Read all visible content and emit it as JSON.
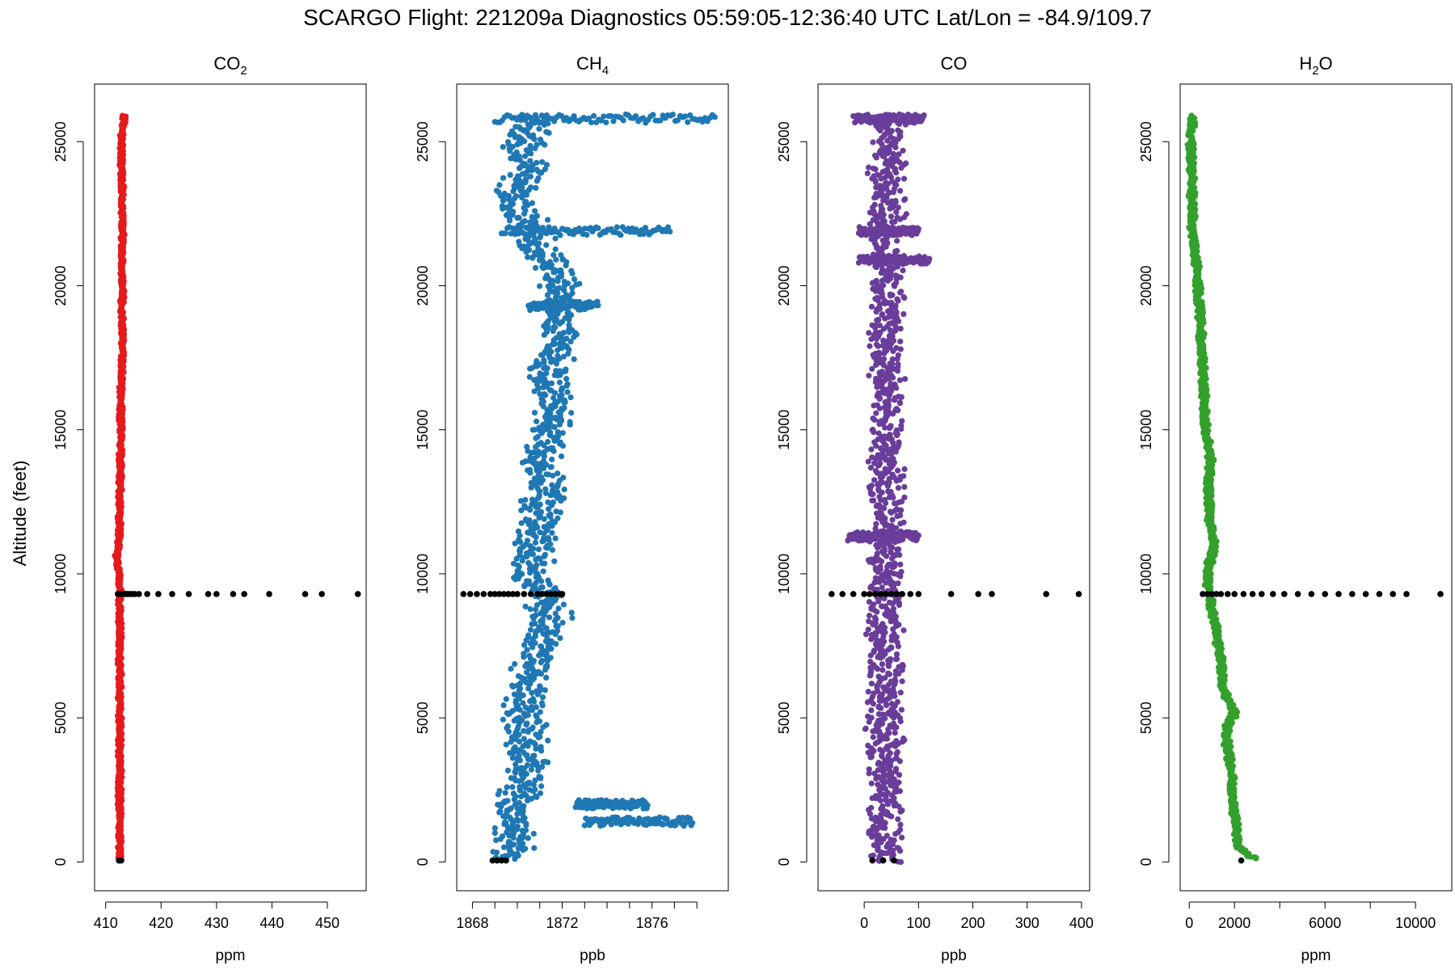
{
  "title": "SCARGO Flight: 221209a  Diagnostics  05:59:05-12:36:40 UTC  Lat/Lon = -84.9/109.7",
  "ylabel": "Altitude (feet)",
  "chart_data": [
    {
      "type": "scatter",
      "title_main": "CO",
      "title_sub": "2",
      "xlabel": "ppm",
      "color": "#e41a1c",
      "xlim": [
        408,
        457
      ],
      "ylim": [
        -1000,
        27000
      ],
      "xticks": [
        410,
        420,
        430,
        440,
        450
      ],
      "yticks": [
        0,
        5000,
        10000,
        15000,
        20000,
        25000
      ],
      "profile": {
        "altitude": [
          50,
          1000,
          2000,
          3000,
          4000,
          5000,
          6000,
          7000,
          8000,
          9000,
          9300,
          10000,
          10500,
          11000,
          12000,
          13000,
          14000,
          15000,
          16000,
          17000,
          18000,
          19000,
          20000,
          21000,
          22000,
          23000,
          24000,
          25000,
          25500,
          25900
        ],
        "value": [
          412.5,
          412.6,
          412.5,
          412.6,
          412.5,
          412.6,
          412.6,
          412.5,
          412.6,
          412.5,
          412.6,
          412.4,
          412.0,
          412.4,
          412.5,
          412.6,
          412.7,
          412.8,
          412.7,
          412.9,
          413.0,
          412.9,
          413.0,
          412.9,
          413.1,
          413.0,
          412.9,
          412.8,
          413.1,
          413.3
        ],
        "spread": 0.3
      },
      "diagnostic_points": {
        "altitude": [
          9300,
          9300,
          9300,
          9300,
          9300,
          9300,
          9300,
          9300,
          9300,
          9300,
          9300,
          9300,
          9300,
          9300,
          9300,
          9300,
          9300,
          9300,
          9300,
          9300,
          9300,
          9300,
          9300,
          9300,
          50,
          50
        ],
        "value": [
          412.2,
          412.5,
          412.8,
          413.1,
          413.4,
          413.7,
          414.0,
          414.4,
          414.8,
          415.3,
          416.0,
          417.5,
          419.5,
          422.0,
          425.0,
          428.5,
          430.0,
          433.0,
          435.0,
          439.5,
          446.0,
          449.0,
          455.5,
          413.0,
          412.4,
          412.8
        ]
      }
    },
    {
      "type": "scatter",
      "title_main": "CH",
      "title_sub": "4",
      "xlabel": "ppb",
      "color": "#1f78b4",
      "xlim": [
        1867.3,
        1879.4
      ],
      "ylim": [
        -1000,
        27000
      ],
      "xticks": [
        1868,
        1869,
        1870,
        1871,
        1872,
        1873,
        1874,
        1875,
        1876,
        1877,
        1878
      ],
      "xticklabels": [
        "1868",
        "",
        "",
        "",
        "1872",
        "",
        "",
        "",
        "1876",
        "",
        ""
      ],
      "yticks": [
        0,
        5000,
        10000,
        15000,
        20000,
        25000
      ],
      "profile": {
        "altitude": [
          100,
          400,
          800,
          1500,
          2500,
          3500,
          4500,
          5500,
          6500,
          7500,
          8500,
          9300,
          10000,
          11000,
          12000,
          13000,
          14000,
          15000,
          16000,
          17000,
          18000,
          19000,
          20000,
          21000,
          22000,
          23000,
          24000,
          25000,
          25900
        ],
        "value": [
          1869.2,
          1869.8,
          1870.0,
          1869.8,
          1870.2,
          1870.5,
          1870.3,
          1870.4,
          1870.6,
          1871.0,
          1871.5,
          1871.2,
          1870.6,
          1870.8,
          1871.0,
          1871.3,
          1871.1,
          1871.5,
          1871.6,
          1871.4,
          1871.8,
          1871.7,
          1871.9,
          1871.3,
          1870.6,
          1869.9,
          1870.5,
          1870.2,
          1871.0
        ],
        "spread": 0.7
      },
      "streaks": [
        {
          "altitude": 25800,
          "from": 1869.0,
          "to": 1878.8
        },
        {
          "altitude": 21900,
          "from": 1869.3,
          "to": 1876.8
        },
        {
          "altitude": 19300,
          "from": 1870.5,
          "to": 1873.6
        },
        {
          "altitude": 2000,
          "from": 1872.6,
          "to": 1875.8
        },
        {
          "altitude": 1400,
          "from": 1873.0,
          "to": 1877.8
        }
      ],
      "diagnostic_points": {
        "altitude": [
          9300,
          9300,
          9300,
          9300,
          9300,
          9300,
          9300,
          9300,
          9300,
          9300,
          9300,
          9300,
          9300,
          9300,
          9300,
          9300,
          9300,
          9300,
          9300,
          9300,
          50,
          50,
          50,
          50
        ],
        "value": [
          1867.6,
          1867.9,
          1868.2,
          1868.5,
          1868.8,
          1869.0,
          1869.2,
          1869.4,
          1869.6,
          1869.8,
          1870.0,
          1870.3,
          1870.6,
          1870.9,
          1871.1,
          1871.3,
          1871.5,
          1871.7,
          1871.9,
          1872.0,
          1868.9,
          1869.1,
          1869.3,
          1869.5
        ]
      }
    },
    {
      "type": "scatter",
      "title_main": "CO",
      "title_sub": "",
      "xlabel": "ppb",
      "color": "#6a3d9a",
      "xlim": [
        -85,
        415
      ],
      "ylim": [
        -1000,
        27000
      ],
      "xticks": [
        0,
        100,
        200,
        300,
        400
      ],
      "yticks": [
        0,
        5000,
        10000,
        15000,
        20000,
        25000
      ],
      "profile": {
        "altitude": [
          0,
          2000,
          4000,
          6000,
          8000,
          9300,
          10000,
          12000,
          14000,
          16000,
          18000,
          20000,
          22000,
          24000,
          25900
        ],
        "value": [
          35,
          38,
          38,
          40,
          38,
          40,
          40,
          42,
          40,
          42,
          43,
          42,
          40,
          42,
          45
        ],
        "spread": 25
      },
      "streaks": [
        {
          "altitude": 25800,
          "from": -20,
          "to": 110
        },
        {
          "altitude": 21900,
          "from": -10,
          "to": 100
        },
        {
          "altitude": 20900,
          "from": -10,
          "to": 120
        },
        {
          "altitude": 11300,
          "from": -30,
          "to": 100
        }
      ],
      "diagnostic_points": {
        "altitude": [
          9300,
          9300,
          9300,
          9300,
          9300,
          9300,
          9300,
          9300,
          9300,
          9300,
          9300,
          9300,
          9300,
          9300,
          9300,
          9300,
          9300,
          9300,
          50,
          50,
          50
        ],
        "value": [
          -60,
          -40,
          -20,
          0,
          10,
          20,
          30,
          40,
          50,
          60,
          70,
          85,
          100,
          160,
          210,
          235,
          335,
          395,
          15,
          35,
          55
        ]
      }
    },
    {
      "type": "scatter",
      "title_main": "H",
      "title_sub": "2",
      "title_end": "O",
      "xlabel": "ppm",
      "color": "#33a02c",
      "xlim": [
        -400,
        11600
      ],
      "ylim": [
        -1000,
        27000
      ],
      "xticks": [
        0,
        2000,
        4000,
        6000,
        8000,
        10000
      ],
      "xticklabels": [
        "0",
        "2000",
        "",
        "6000",
        "",
        "10000"
      ],
      "yticks": [
        0,
        5000,
        10000,
        15000,
        20000,
        25000
      ],
      "profile": {
        "altitude": [
          100,
          500,
          1500,
          2500,
          3500,
          4500,
          5200,
          6000,
          7000,
          8000,
          9300,
          10000,
          11000,
          12000,
          13000,
          14000,
          15000,
          16000,
          17000,
          18000,
          19000,
          20000,
          21000,
          22000,
          23000,
          24000,
          25000,
          25900
        ],
        "value": [
          2900,
          2200,
          2000,
          1900,
          1800,
          1600,
          2000,
          1500,
          1400,
          1200,
          900,
          800,
          1100,
          900,
          850,
          950,
          700,
          650,
          600,
          550,
          500,
          400,
          300,
          150,
          120,
          100,
          80,
          100
        ],
        "spread": 120
      },
      "diagnostic_points": {
        "altitude": [
          9300,
          9300,
          9300,
          9300,
          9300,
          9300,
          9300,
          9300,
          9300,
          9300,
          9300,
          9300,
          9300,
          9300,
          9300,
          9300,
          9300,
          9300,
          9300,
          9300,
          9300,
          9300,
          50
        ],
        "value": [
          600,
          800,
          1000,
          1200,
          1400,
          1700,
          2000,
          2400,
          2800,
          3200,
          3700,
          4200,
          4800,
          5400,
          6000,
          6600,
          7200,
          7800,
          8400,
          9000,
          9600,
          11100,
          2300
        ]
      }
    }
  ]
}
